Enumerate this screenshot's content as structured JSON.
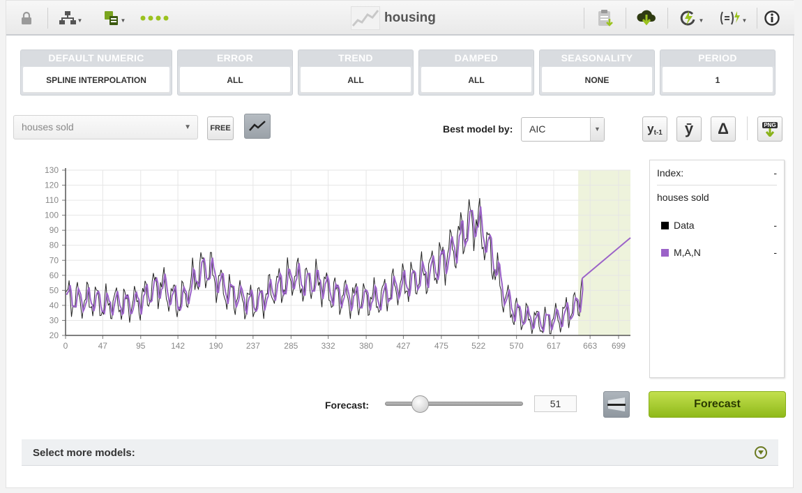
{
  "window": {
    "title": "housing"
  },
  "toolbar": {
    "icons": [
      "lock-icon",
      "model-tree-icon",
      "dataset-icon",
      "more-dots-icon",
      "dataset-title-icon",
      "clipboard-icon",
      "cloud-download-icon",
      "lightning-actions-icon",
      "formula-icon",
      "info-icon"
    ]
  },
  "params": [
    {
      "label": "DEFAULT NUMERIC",
      "value": "SPLINE INTERPOLATION"
    },
    {
      "label": "ERROR",
      "value": "ALL"
    },
    {
      "label": "TREND",
      "value": "ALL"
    },
    {
      "label": "DAMPED",
      "value": "ALL"
    },
    {
      "label": "SEASONALITY",
      "value": "NONE"
    },
    {
      "label": "PERIOD",
      "value": "1"
    }
  ],
  "controls": {
    "field_value": "houses sold",
    "free_label": "FREE",
    "best_model_label": "Best model by:",
    "best_model_value": "AIC",
    "ylag_label": "y",
    "ylag_sub": "t-1",
    "ybar_label": "ȳ",
    "delta_label": "Δ",
    "png_label": "PNG"
  },
  "legend": {
    "index_label": "Index:",
    "index_value": "-",
    "field_name": "houses sold",
    "items": [
      {
        "label": "Data",
        "value": "-",
        "color": "#000000"
      },
      {
        "label": "M,A,N",
        "value": "-",
        "color": "#9b62c8"
      }
    ]
  },
  "forecast": {
    "label": "Forecast:",
    "value": "51",
    "slider_fraction": 0.25,
    "button_label": "Forecast"
  },
  "more_models": {
    "label": "Select more models:"
  },
  "chart_data": {
    "type": "line",
    "xlim": [
      0,
      714
    ],
    "ylim": [
      20,
      130
    ],
    "yticks": [
      "20",
      "30",
      "40",
      "50",
      "60",
      "70",
      "80",
      "90",
      "100",
      "110",
      "120",
      "130"
    ],
    "xticks": [
      "0",
      "47",
      "95",
      "142",
      "190",
      "237",
      "285",
      "332",
      "380",
      "427",
      "475",
      "522",
      "570",
      "617",
      "663",
      "699"
    ],
    "forecast_region": [
      648,
      714
    ],
    "series": [
      {
        "name": "Data",
        "color": "#000000"
      },
      {
        "name": "M,A,N",
        "color": "#9b62c8"
      }
    ],
    "envelope": [
      [
        0,
        45
      ],
      [
        12,
        44
      ],
      [
        24,
        43
      ],
      [
        36,
        44
      ],
      [
        48,
        40
      ],
      [
        60,
        42
      ],
      [
        72,
        41
      ],
      [
        84,
        41
      ],
      [
        96,
        44
      ],
      [
        108,
        50
      ],
      [
        120,
        54
      ],
      [
        132,
        46
      ],
      [
        144,
        42
      ],
      [
        156,
        51
      ],
      [
        168,
        63
      ],
      [
        180,
        64
      ],
      [
        192,
        56
      ],
      [
        204,
        49
      ],
      [
        216,
        46
      ],
      [
        228,
        43
      ],
      [
        240,
        42
      ],
      [
        252,
        46
      ],
      [
        264,
        52
      ],
      [
        276,
        54
      ],
      [
        288,
        60
      ],
      [
        300,
        54
      ],
      [
        312,
        56
      ],
      [
        324,
        54
      ],
      [
        336,
        48
      ],
      [
        348,
        47
      ],
      [
        360,
        45
      ],
      [
        372,
        44
      ],
      [
        384,
        45
      ],
      [
        396,
        44
      ],
      [
        408,
        49
      ],
      [
        420,
        53
      ],
      [
        432,
        55
      ],
      [
        444,
        58
      ],
      [
        456,
        62
      ],
      [
        468,
        66
      ],
      [
        480,
        72
      ],
      [
        492,
        80
      ],
      [
        504,
        90
      ],
      [
        516,
        98
      ],
      [
        528,
        86
      ],
      [
        540,
        70
      ],
      [
        552,
        48
      ],
      [
        564,
        37
      ],
      [
        576,
        33
      ],
      [
        588,
        30
      ],
      [
        600,
        29
      ],
      [
        612,
        30
      ],
      [
        624,
        32
      ],
      [
        636,
        36
      ],
      [
        648,
        41
      ],
      [
        653,
        58
      ]
    ],
    "forecast_line": [
      [
        653,
        58
      ],
      [
        714,
        85
      ]
    ]
  }
}
